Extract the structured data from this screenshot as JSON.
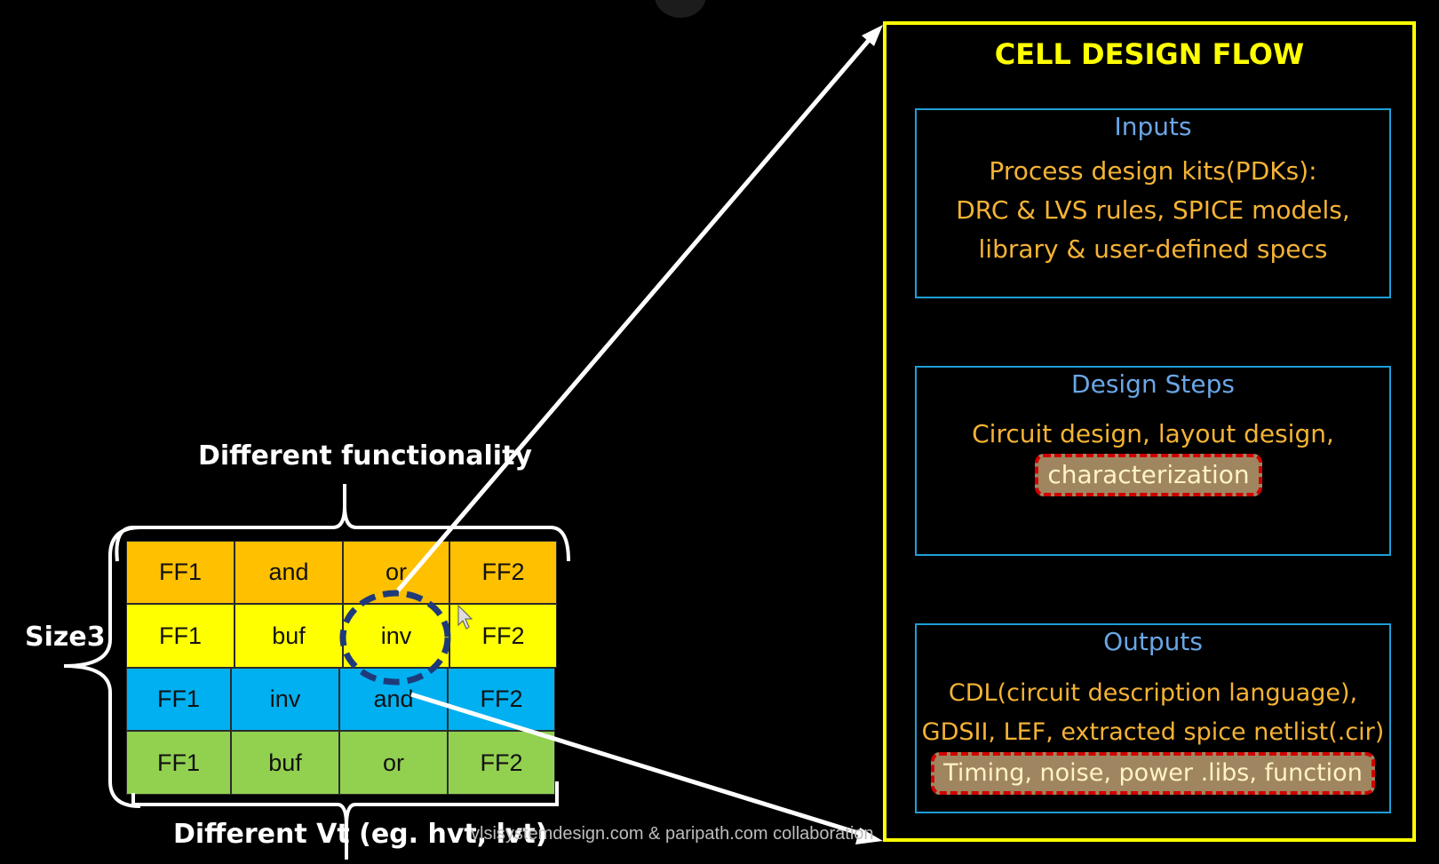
{
  "labels": {
    "functionality": "Different functionality",
    "size": "Size3",
    "vt": "Different Vt (eg. hvt, lvt)"
  },
  "grid": {
    "rows": [
      [
        "FF1",
        "and",
        "or",
        "FF2"
      ],
      [
        "FF1",
        "buf",
        "inv",
        "FF2"
      ],
      [
        "FF1",
        "inv",
        "and",
        "FF2"
      ],
      [
        "FF1",
        "buf",
        "or",
        "FF2"
      ]
    ],
    "row_colors": [
      "#ffc000",
      "#ffff00",
      "#00b0f0",
      "#92d050"
    ]
  },
  "flow": {
    "title": "CELL DESIGN FLOW",
    "inputs": {
      "title": "Inputs",
      "lines": [
        "Process design kits(PDKs):",
        "DRC & LVS rules, SPICE models,",
        "library & user-defined specs"
      ]
    },
    "steps": {
      "title": "Design Steps",
      "line": "Circuit design, layout design,",
      "highlight": "characterization"
    },
    "outputs": {
      "title": "Outputs",
      "lines": [
        "CDL(circuit description language),",
        "GDSII, LEF, extracted spice netlist(.cir)"
      ],
      "highlight": "Timing, noise, power .libs, function"
    }
  },
  "watermark": "vlsisystemdesign.com & paripath.com collaboration",
  "colors": {
    "flow_border": "#ffff00",
    "panel_border": "#1e9fd6",
    "panel_title": "#6aa6e6",
    "panel_text": "#f5b335",
    "highlight_fill": "#a08660",
    "highlight_border": "#d00000",
    "circle": "#1f3a7a"
  }
}
